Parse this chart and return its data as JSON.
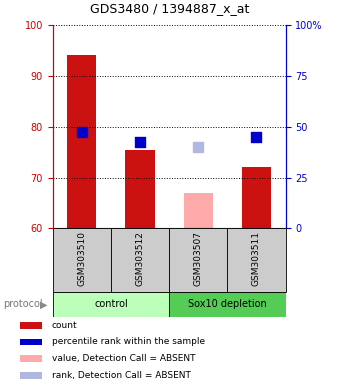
{
  "title": "GDS3480 / 1394887_x_at",
  "samples": [
    "GSM303510",
    "GSM303512",
    "GSM303507",
    "GSM303511"
  ],
  "bar_values": [
    94.0,
    75.5,
    67.0,
    72.0
  ],
  "bar_absent": [
    false,
    false,
    true,
    false
  ],
  "dot_values": [
    79.0,
    77.0,
    76.0,
    78.0
  ],
  "dot_absent": [
    false,
    false,
    true,
    false
  ],
  "ylim": [
    60,
    100
  ],
  "yticks_left": [
    60,
    70,
    80,
    90,
    100
  ],
  "yticks_right": [
    0,
    25,
    50,
    75,
    100
  ],
  "yticks_right_positions": [
    60,
    70,
    80,
    90,
    100
  ],
  "color_bar_present": "#cc1111",
  "color_bar_absent": "#ffaaaa",
  "color_dot_present": "#0000cc",
  "color_dot_absent": "#b0b8e0",
  "color_group1_bg": "#bbffbb",
  "color_group2_bg": "#55cc55",
  "group_labels": [
    "control",
    "Sox10 depletion"
  ],
  "protocol_label": "protocol",
  "legend_items": [
    {
      "color": "#cc1111",
      "label": "count"
    },
    {
      "color": "#0000cc",
      "label": "percentile rank within the sample"
    },
    {
      "color": "#ffaaaa",
      "label": "value, Detection Call = ABSENT"
    },
    {
      "color": "#b0b8e0",
      "label": "rank, Detection Call = ABSENT"
    }
  ],
  "bar_width": 0.5,
  "dot_size": 45,
  "left_axis_color": "#cc0000",
  "right_axis_color": "#0000cc",
  "sample_box_color": "#cccccc",
  "title_fontsize": 9,
  "tick_fontsize": 7,
  "label_fontsize": 6.5,
  "legend_fontsize": 6.5
}
